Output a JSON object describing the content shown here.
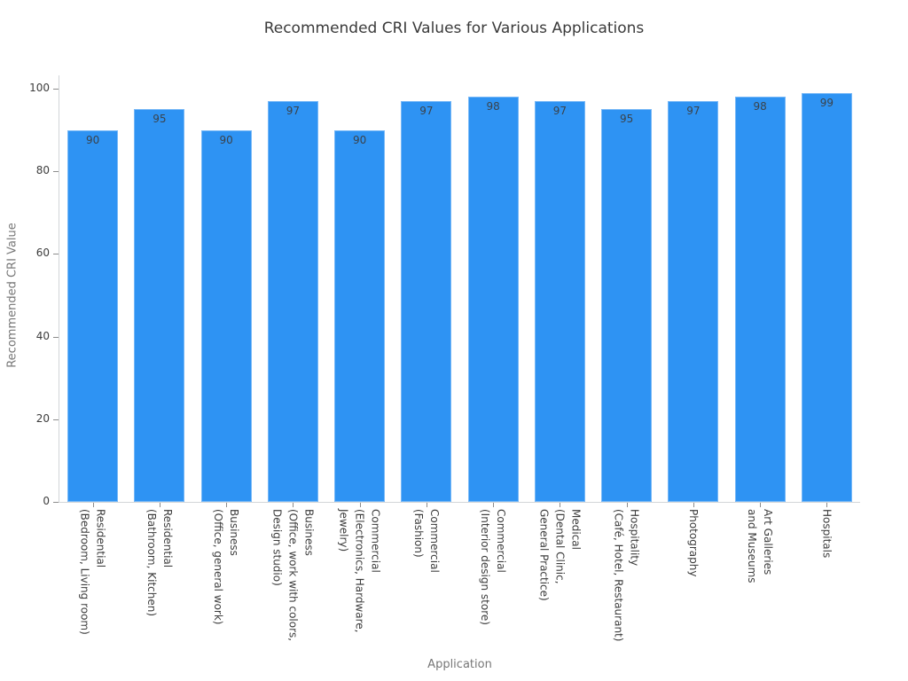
{
  "chart_data": {
    "type": "bar",
    "title": "Recommended CRI Values for Various Applications",
    "xlabel": "Application",
    "ylabel": "Recommended CRI Value",
    "categories": [
      "Residential\n(Bedroom, Living room)",
      "Residential\n(Bathroom, Kitchen)",
      "Business\n(Office, general work)",
      "Business\n(Office, work with colors,\nDesign studio)",
      "Commercial\n(Electronics, Hardware,\nJewelry)",
      "Commercial\n(Fashion)",
      "Commercial\n(Interior design store)",
      "Medical\n(Dental Clinic,\nGeneral Practice)",
      "Hospitality\n(Café, Hotel, Restaurant)",
      "Photography",
      "Art Galleries\nand Museums",
      "Hospitals"
    ],
    "values": [
      90,
      95,
      90,
      97,
      90,
      97,
      98,
      97,
      95,
      97,
      98,
      99
    ],
    "yticks": [
      0,
      20,
      40,
      60,
      80,
      100
    ],
    "ylim": [
      0,
      103
    ],
    "grid": false,
    "legend": null,
    "value_labels_shown": true,
    "bar_color": "#2e93f3",
    "title_color": "#3a3a3a",
    "tick_label_color": "#3d3d3d",
    "axis_label_color": "#777777",
    "spine_color": "#d2d5d8"
  }
}
